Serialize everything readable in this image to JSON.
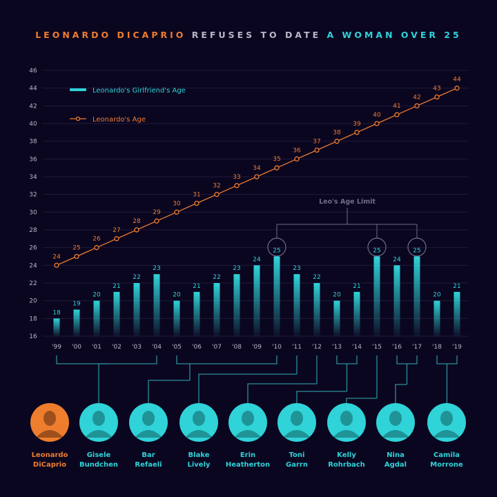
{
  "title": {
    "part1": "LEONARDO DICAPRIO",
    "part2": " REFUSES TO DATE ",
    "part3": "A WOMAN OVER 25"
  },
  "colors": {
    "background": "#0b0620",
    "leo": "#ef7d2e",
    "girlfriend": "#2fd3d8",
    "grid": "#1f1a38",
    "text": "#b9b6c6",
    "connector": "#2a8f98",
    "limit_label": "#6f6c86"
  },
  "chart_data": {
    "type": "bar",
    "title": "LEONARDO DICAPRIO REFUSES TO DATE A WOMAN OVER 25",
    "categories": [
      "'99",
      "'00",
      "'01",
      "'02",
      "'03",
      "'04",
      "'05",
      "'06",
      "'07",
      "'08",
      "'09",
      "'10",
      "'11",
      "'12",
      "'13",
      "'14",
      "'15",
      "'16",
      "'17",
      "'18",
      "'19"
    ],
    "series": [
      {
        "name": "Leonardo's Girlfriend's Age",
        "type": "bar",
        "values": [
          18,
          19,
          20,
          21,
          22,
          23,
          20,
          21,
          22,
          23,
          24,
          25,
          23,
          22,
          20,
          21,
          25,
          24,
          25,
          20,
          21
        ]
      },
      {
        "name": "Leonardo's Age",
        "type": "line",
        "values": [
          24,
          25,
          26,
          27,
          28,
          29,
          30,
          31,
          32,
          33,
          34,
          35,
          36,
          37,
          38,
          39,
          40,
          41,
          42,
          43,
          44
        ]
      }
    ],
    "yticks": [
      16,
      18,
      20,
      22,
      24,
      26,
      28,
      30,
      32,
      34,
      36,
      38,
      40,
      42,
      44,
      46
    ],
    "ylim": [
      16,
      46
    ],
    "grid": true,
    "legend_placement": "top-left",
    "annotation": {
      "label": "Leo's Age Limit",
      "highlighted": [
        "'10",
        "'15",
        "'17"
      ]
    }
  },
  "people": [
    {
      "name1": "Leonardo",
      "name2": "DiCaprio",
      "years": [],
      "leo": true
    },
    {
      "name1": "Gisele",
      "name2": "Bundchen",
      "years": [
        "'99",
        "'04"
      ]
    },
    {
      "name1": "Bar",
      "name2": "Refaeli",
      "years": [
        "'05",
        "'10"
      ]
    },
    {
      "name1": "Blake",
      "name2": "Lively",
      "years": [
        "'11"
      ]
    },
    {
      "name1": "Erin",
      "name2": "Heatherton",
      "years": [
        "'12"
      ]
    },
    {
      "name1": "Toni",
      "name2": "Garrn",
      "years": [
        "'13",
        "'14"
      ]
    },
    {
      "name1": "Kelly",
      "name2": "Rohrbach",
      "years": [
        "'15"
      ]
    },
    {
      "name1": "Nina",
      "name2": "Agdal",
      "years": [
        "'16",
        "'17"
      ]
    },
    {
      "name1": "Camila",
      "name2": "Morrone",
      "years": [
        "'18",
        "'19"
      ]
    }
  ]
}
